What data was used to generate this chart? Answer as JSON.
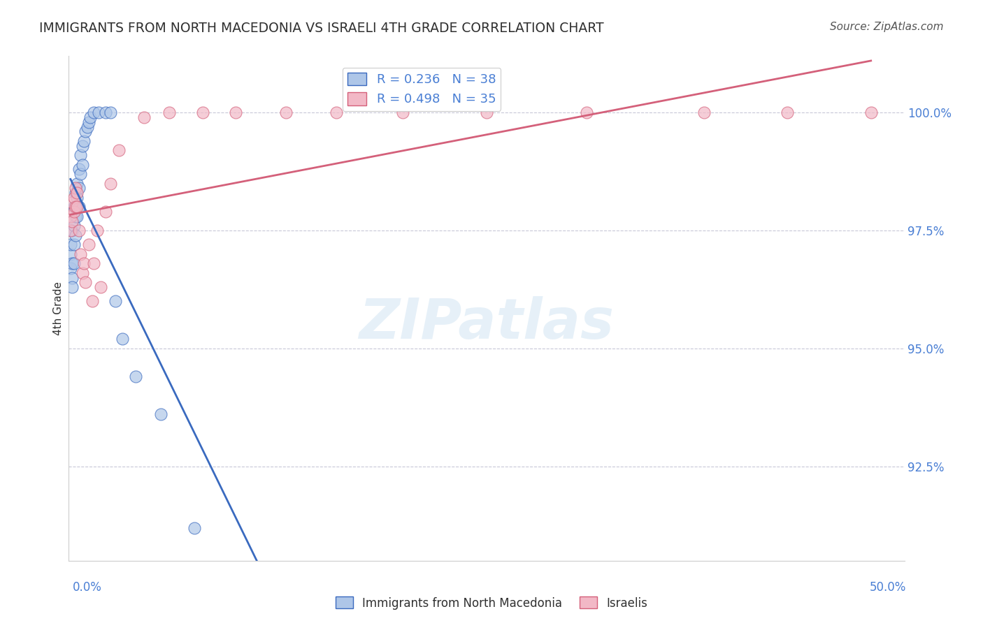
{
  "title": "IMMIGRANTS FROM NORTH MACEDONIA VS ISRAELI 4TH GRADE CORRELATION CHART",
  "source": "Source: ZipAtlas.com",
  "ylabel": "4th Grade",
  "ylabel_right_labels": [
    "100.0%",
    "97.5%",
    "95.0%",
    "92.5%"
  ],
  "ylabel_right_values": [
    1.0,
    0.975,
    0.95,
    0.925
  ],
  "xlim": [
    0.0,
    0.5
  ],
  "ylim": [
    0.905,
    1.012
  ],
  "legend_blue_label": "R = 0.236   N = 38",
  "legend_pink_label": "R = 0.498   N = 35",
  "blue_scatter_x": [
    0.001,
    0.001,
    0.001,
    0.002,
    0.002,
    0.002,
    0.002,
    0.003,
    0.003,
    0.003,
    0.003,
    0.004,
    0.004,
    0.004,
    0.005,
    0.005,
    0.005,
    0.006,
    0.006,
    0.006,
    0.007,
    0.007,
    0.008,
    0.008,
    0.009,
    0.01,
    0.011,
    0.012,
    0.013,
    0.015,
    0.018,
    0.022,
    0.025,
    0.028,
    0.032,
    0.04,
    0.055,
    0.075
  ],
  "blue_scatter_y": [
    0.97,
    0.972,
    0.967,
    0.975,
    0.968,
    0.965,
    0.963,
    0.98,
    0.976,
    0.972,
    0.968,
    0.983,
    0.978,
    0.974,
    0.985,
    0.982,
    0.978,
    0.988,
    0.984,
    0.98,
    0.991,
    0.987,
    0.993,
    0.989,
    0.994,
    0.996,
    0.997,
    0.998,
    0.999,
    1.0,
    1.0,
    1.0,
    1.0,
    0.96,
    0.952,
    0.944,
    0.936,
    0.912
  ],
  "pink_scatter_x": [
    0.001,
    0.001,
    0.002,
    0.002,
    0.003,
    0.003,
    0.004,
    0.004,
    0.005,
    0.005,
    0.006,
    0.007,
    0.008,
    0.009,
    0.01,
    0.012,
    0.014,
    0.015,
    0.017,
    0.019,
    0.022,
    0.025,
    0.03,
    0.045,
    0.06,
    0.08,
    0.1,
    0.13,
    0.16,
    0.2,
    0.25,
    0.31,
    0.38,
    0.43,
    0.48
  ],
  "pink_scatter_y": [
    0.978,
    0.975,
    0.981,
    0.977,
    0.982,
    0.979,
    0.984,
    0.98,
    0.983,
    0.98,
    0.975,
    0.97,
    0.966,
    0.968,
    0.964,
    0.972,
    0.96,
    0.968,
    0.975,
    0.963,
    0.979,
    0.985,
    0.992,
    0.999,
    1.0,
    1.0,
    1.0,
    1.0,
    1.0,
    1.0,
    1.0,
    1.0,
    1.0,
    1.0,
    1.0
  ],
  "blue_color": "#aec6e8",
  "pink_color": "#f2b8c6",
  "blue_line_color": "#3a6abf",
  "pink_line_color": "#d4607a",
  "grid_color": "#c8c8d8",
  "title_color": "#303030",
  "axis_label_color": "#4a7fd4",
  "source_color": "#555555"
}
